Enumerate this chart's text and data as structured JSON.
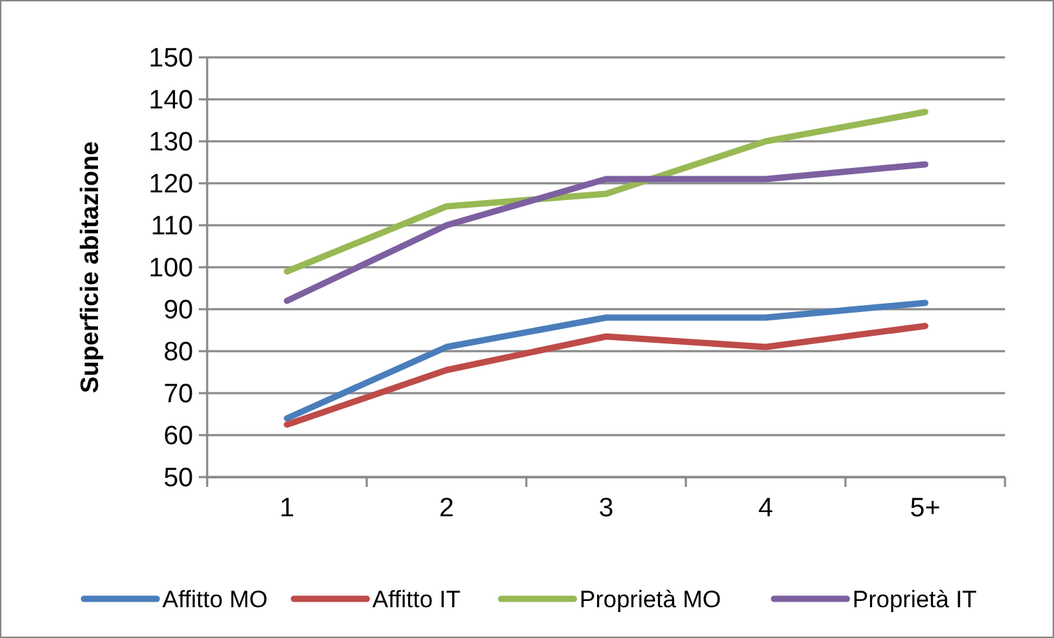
{
  "chart_data": {
    "type": "line",
    "ylabel": "Superficie abitazione",
    "categories": [
      "1",
      "2",
      "3",
      "4",
      "5+"
    ],
    "series": [
      {
        "name": "Affitto MO",
        "color": "#4a7ebb",
        "values": [
          64,
          81,
          88,
          88,
          91.5
        ]
      },
      {
        "name": "Affitto IT",
        "color": "#be4b48",
        "values": [
          62.5,
          75.5,
          83.5,
          81,
          86
        ]
      },
      {
        "name": "Proprietà MO",
        "color": "#98b954",
        "values": [
          99,
          114.5,
          117.5,
          130,
          137
        ]
      },
      {
        "name": "Proprietà IT",
        "color": "#7d60a0",
        "values": [
          92,
          110,
          121,
          121,
          124.5
        ]
      }
    ],
    "ylim": [
      50,
      150
    ],
    "yticks": [
      50,
      60,
      70,
      80,
      90,
      100,
      110,
      120,
      130,
      140,
      150
    ],
    "grid": "y",
    "legend": "bottom",
    "marker": "none",
    "line_style": "solid"
  }
}
